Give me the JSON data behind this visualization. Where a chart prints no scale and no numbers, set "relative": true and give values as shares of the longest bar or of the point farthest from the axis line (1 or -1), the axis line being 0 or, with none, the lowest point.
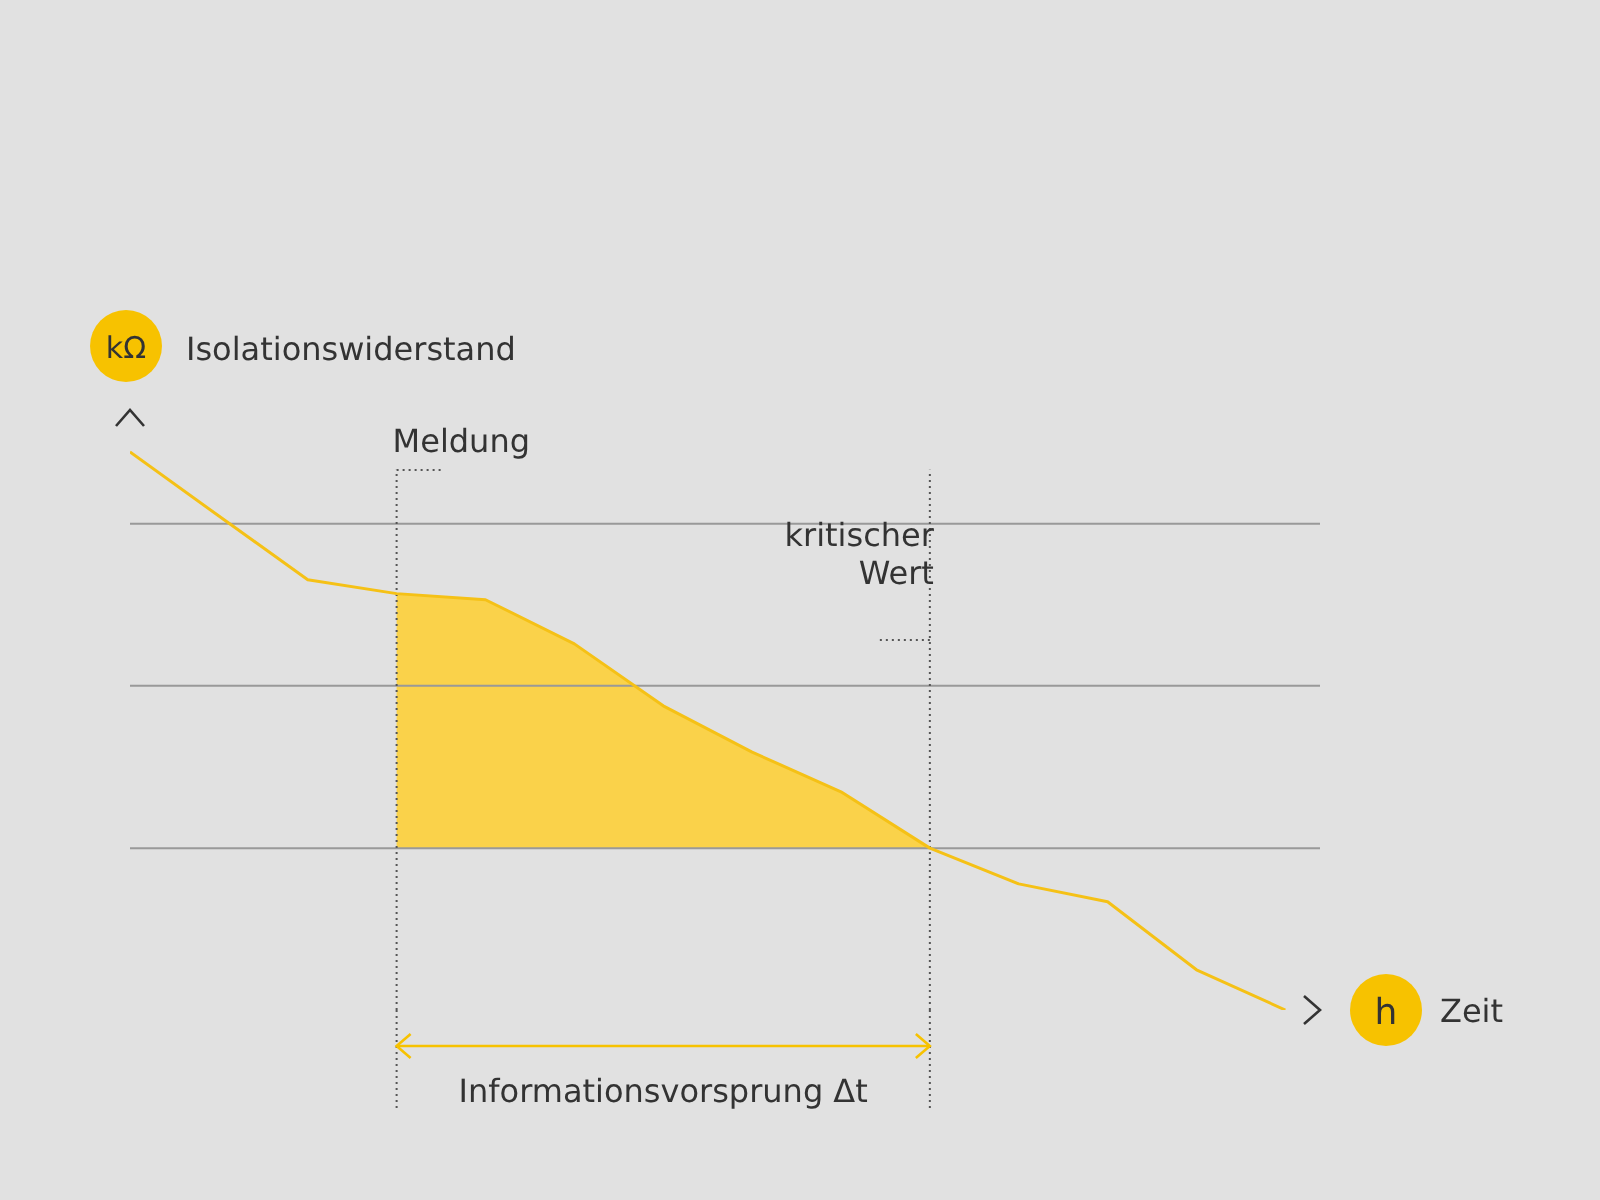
{
  "chart_data": {
    "type": "line",
    "relative": true,
    "xlabel": "Zeit",
    "ylabel": "Isolationswiderstand",
    "categories": [
      null,
      null,
      null,
      null,
      null,
      null,
      null,
      null,
      null,
      null,
      null,
      null,
      null,
      null
    ],
    "annotations": [
      "kΩ",
      "h",
      "Meldung",
      "kritischer Wert",
      "Informationsvorsprung Δt"
    ],
    "series": [
      {
        "type": "area",
        "color": "#fdd03a",
        "values": [
          null,
          null,
          null,
          0.746,
          0.735,
          0.656,
          0.545,
          0.462,
          0.391,
          0.29,
          null,
          null,
          null,
          null
        ]
      },
      {
        "color": "#f5c116",
        "values": [
          1,
          0.885,
          0.771,
          0.746,
          0.735,
          0.656,
          0.545,
          0.462,
          0.391,
          0.29,
          0.226,
          0.194,
          0.072,
          0
        ]
      }
    ],
    "ref_lines": [
      {
        "axis": "y",
        "value": 0.871,
        "color": "#999999"
      },
      {
        "axis": "y",
        "value": 0.581,
        "color": "#999999"
      },
      {
        "axis": "y",
        "value": 0.29,
        "color": "#999999"
      }
    ]
  }
}
